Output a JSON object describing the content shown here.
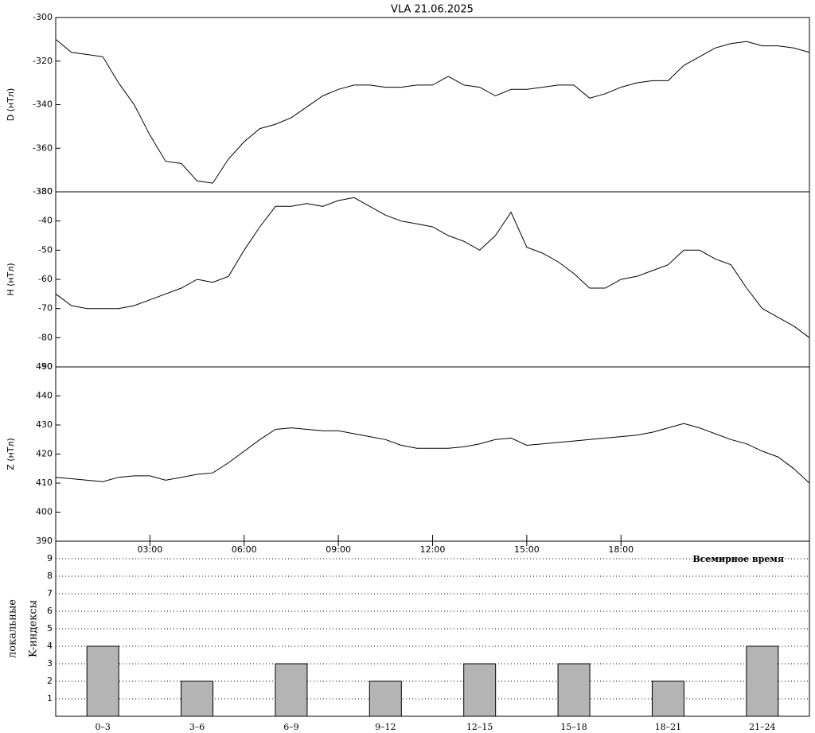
{
  "chart_data": [
    {
      "type": "line",
      "title": "VLA   21.06.2025",
      "ylabel": "D (нТл)",
      "xlim": [
        0,
        24
      ],
      "ylim": [
        -380,
        -300
      ],
      "yticks": [
        -300,
        -320,
        -340,
        -360,
        -380
      ],
      "x": [
        0,
        0.5,
        1,
        1.5,
        2,
        2.5,
        3,
        3.5,
        4,
        4.5,
        5,
        5.5,
        6,
        6.5,
        7,
        7.5,
        8,
        8.5,
        9,
        9.5,
        10,
        10.5,
        11,
        11.5,
        12,
        12.5,
        13,
        13.5,
        14,
        14.5,
        15,
        15.5,
        16,
        16.5,
        17,
        17.5,
        18,
        18.5,
        19,
        19.5,
        20,
        20.5,
        21,
        21.5,
        22,
        22.5,
        23,
        23.5,
        24
      ],
      "values": [
        -310,
        -316,
        -317,
        -318,
        -330,
        -340,
        -354,
        -366,
        -367,
        -375,
        -376,
        -365,
        -357,
        -351,
        -349,
        -346,
        -341,
        -336,
        -333,
        -331,
        -331,
        -332,
        -332,
        -331,
        -331,
        -327,
        -331,
        -332,
        -336,
        -333,
        -333,
        -332,
        -331,
        -331,
        -337,
        -335,
        -332,
        -330,
        -329,
        -329,
        -322,
        -318,
        -314,
        -312,
        -311,
        -313,
        -313,
        -314,
        -316
      ],
      "color": "#000000"
    },
    {
      "type": "line",
      "ylabel": "H (нТл)",
      "xlim": [
        0,
        24
      ],
      "ylim": [
        -90,
        -30
      ],
      "yticks": [
        -30,
        -40,
        -50,
        -60,
        -70,
        -80,
        -90
      ],
      "x": [
        0,
        0.5,
        1,
        1.5,
        2,
        2.5,
        3,
        3.5,
        4,
        4.5,
        5,
        5.5,
        6,
        6.5,
        7,
        7.5,
        8,
        8.5,
        9,
        9.5,
        10,
        10.5,
        11,
        11.5,
        12,
        12.5,
        13,
        13.5,
        14,
        14.5,
        15,
        15.5,
        16,
        16.5,
        17,
        17.5,
        18,
        18.5,
        19,
        19.5,
        20,
        20.5,
        21,
        21.5,
        22,
        22.5,
        23,
        23.5,
        24
      ],
      "values": [
        -65,
        -69,
        -70,
        -70,
        -70,
        -69,
        -67,
        -65,
        -63,
        -60,
        -61,
        -59,
        -50,
        -42,
        -35,
        -35,
        -34,
        -35,
        -33,
        -32,
        -35,
        -38,
        -40,
        -41,
        -42,
        -45,
        -47,
        -50,
        -45,
        -37,
        -49,
        -51,
        -54,
        -58,
        -63,
        -63,
        -60,
        -59,
        -57,
        -55,
        -50,
        -50,
        -53,
        -55,
        -63,
        -70,
        -73,
        -76,
        -80
      ],
      "color": "#000000"
    },
    {
      "type": "line",
      "ylabel": "Z (нТл)",
      "xlabel": "Всемирное время",
      "xlim": [
        0,
        24
      ],
      "ylim": [
        390,
        450
      ],
      "yticks": [
        390,
        400,
        410,
        420,
        430,
        440,
        450
      ],
      "xticks": [
        {
          "value": 3,
          "label": "03:00"
        },
        {
          "value": 6,
          "label": "06:00"
        },
        {
          "value": 9,
          "label": "09:00"
        },
        {
          "value": 12,
          "label": "12:00"
        },
        {
          "value": 15,
          "label": "15:00"
        },
        {
          "value": 18,
          "label": "18:00"
        }
      ],
      "x": [
        0,
        0.5,
        1,
        1.5,
        2,
        2.5,
        3,
        3.5,
        4,
        4.5,
        5,
        5.5,
        6,
        6.5,
        7,
        7.5,
        8,
        8.5,
        9,
        9.5,
        10,
        10.5,
        11,
        11.5,
        12,
        12.5,
        13,
        13.5,
        14,
        14.5,
        15,
        15.5,
        16,
        16.5,
        17,
        17.5,
        18,
        18.5,
        19,
        19.5,
        20,
        20.5,
        21,
        21.5,
        22,
        22.5,
        23,
        23.5,
        24
      ],
      "values": [
        412,
        411.5,
        411,
        410.5,
        412,
        412.5,
        412.5,
        411,
        412,
        413,
        413.5,
        417,
        421,
        425,
        428.5,
        429,
        428.5,
        428,
        428,
        427,
        426,
        425,
        423,
        422,
        422,
        422,
        422.5,
        423.5,
        425,
        425.5,
        423,
        423.5,
        424,
        424.5,
        425,
        425.5,
        426,
        426.5,
        427.5,
        429,
        430.5,
        429,
        427,
        425,
        423.5,
        421,
        419,
        415,
        410
      ],
      "color": "#000000"
    },
    {
      "type": "bar",
      "ylabel": [
        "локальные",
        "K-индексы"
      ],
      "categories": [
        "0–3",
        "3–6",
        "6–9",
        "9–12",
        "12–15",
        "15–18",
        "18–21",
        "21–24"
      ],
      "values": [
        4,
        2,
        3,
        2,
        3,
        3,
        2,
        4
      ],
      "color": "#b4b4b4",
      "ylim": [
        0,
        10
      ],
      "yticks": [
        1,
        2,
        3,
        4,
        5,
        6,
        7,
        8,
        9
      ],
      "grid": true
    }
  ]
}
